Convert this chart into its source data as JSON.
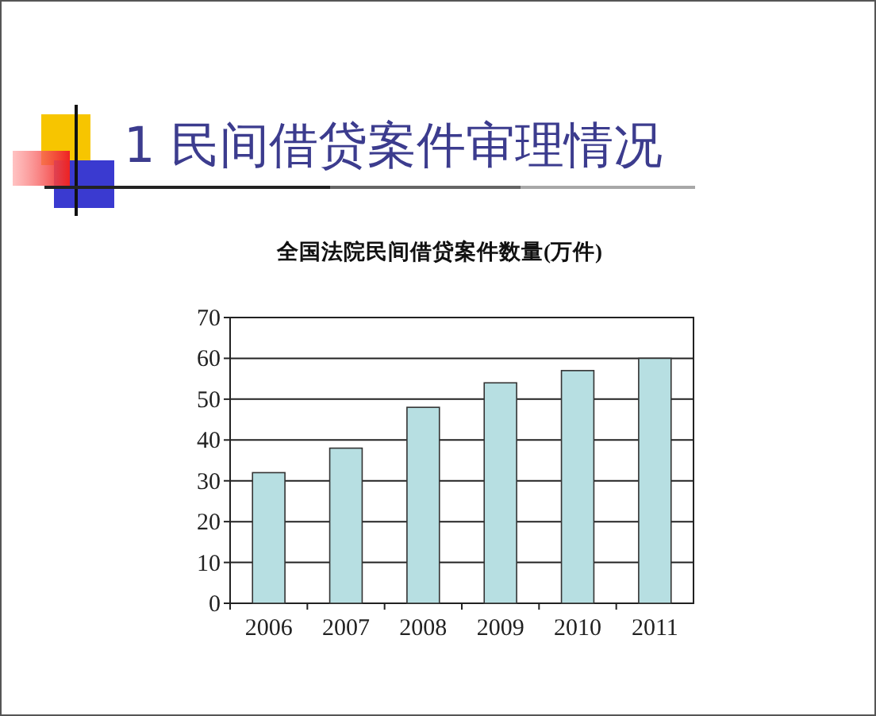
{
  "chart_data": {
    "type": "bar",
    "title": "1 民间借贷案件审理情况",
    "subtitle": "全国法院民间借贷案件数量(万件)",
    "categories": [
      "2006",
      "2007",
      "2008",
      "2009",
      "2010",
      "2011"
    ],
    "values": [
      32,
      38,
      48,
      54,
      57,
      60
    ],
    "color": "#b7dfe2",
    "ylim": [
      0,
      70
    ],
    "yticks": [
      0,
      10,
      20,
      30,
      40,
      50,
      60,
      70
    ],
    "grid": "y"
  }
}
